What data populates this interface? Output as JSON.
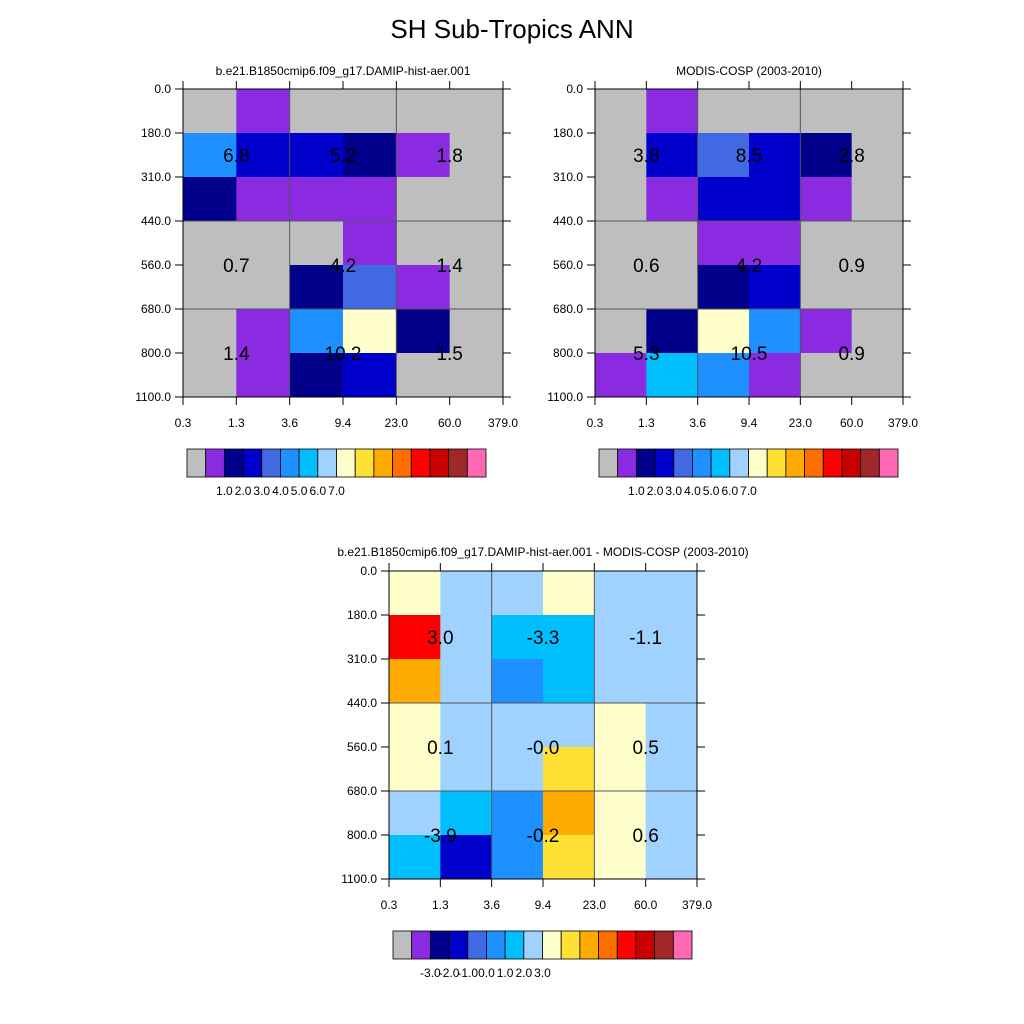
{
  "title": "SH Sub-Tropics ANN",
  "chart_data": [
    {
      "type": "heatmap",
      "title": "b.e21.B1850cmip6.f09_g17.DAMIP-hist-aer.001",
      "x_ticks": [
        "0.3",
        "1.3",
        "3.6",
        "9.4",
        "23.0",
        "60.0",
        "379.0"
      ],
      "y_ticks": [
        "0.0",
        "180.0",
        "310.0",
        "440.0",
        "560.0",
        "680.0",
        "800.0",
        "1100.0"
      ],
      "cells": [
        [
          "#bebebe",
          "#8a2be2",
          "#bebebe",
          "#bebebe",
          "#bebebe",
          "#bebebe"
        ],
        [
          "#1e90ff",
          "#0000cd",
          "#0000cd",
          "#00008b",
          "#8a2be2",
          "#bebebe"
        ],
        [
          "#00008b",
          "#8a2be2",
          "#8a2be2",
          "#8a2be2",
          "#bebebe",
          "#bebebe"
        ],
        [
          "#bebebe",
          "#bebebe",
          "#bebebe",
          "#8a2be2",
          "#bebebe",
          "#bebebe"
        ],
        [
          "#bebebe",
          "#bebebe",
          "#00008b",
          "#4169e1",
          "#8a2be2",
          "#bebebe"
        ],
        [
          "#bebebe",
          "#8a2be2",
          "#1e90ff",
          "#ffffcc",
          "#00008b",
          "#bebebe"
        ],
        [
          "#bebebe",
          "#8a2be2",
          "#00008b",
          "#0000cd",
          "#bebebe",
          "#bebebe"
        ]
      ],
      "annotations": [
        {
          "row": 1.5,
          "col": 1,
          "text": "6.8"
        },
        {
          "row": 1.5,
          "col": 3,
          "text": "5.2"
        },
        {
          "row": 1.5,
          "col": 5,
          "text": "1.8"
        },
        {
          "row": 4,
          "col": 1,
          "text": "0.7"
        },
        {
          "row": 4,
          "col": 3,
          "text": "4.2"
        },
        {
          "row": 4,
          "col": 5,
          "text": "1.4"
        },
        {
          "row": 6,
          "col": 1,
          "text": "1.4"
        },
        {
          "row": 6,
          "col": 3,
          "text": "10.2"
        },
        {
          "row": 6,
          "col": 5,
          "text": "1.5"
        }
      ],
      "colorbar": {
        "colors": [
          "#bebebe",
          "#8a2be2",
          "#00008b",
          "#0000cd",
          "#4169e1",
          "#1e90ff",
          "#00bfff",
          "#a0d2ff",
          "#ffffcc",
          "#ffe135",
          "#ffaa00",
          "#ff6e00",
          "#ff0000",
          "#c80000",
          "#a02828",
          "#ff69b4"
        ],
        "labels": [
          "1.0",
          "2.0",
          "3.0",
          "4.0",
          "5.0",
          "6.0",
          "7.0"
        ]
      }
    },
    {
      "type": "heatmap",
      "title": "MODIS-COSP (2003-2010)",
      "x_ticks": [
        "0.3",
        "1.3",
        "3.6",
        "9.4",
        "23.0",
        "60.0",
        "379.0"
      ],
      "y_ticks": [
        "0.0",
        "180.0",
        "310.0",
        "440.0",
        "560.0",
        "680.0",
        "800.0",
        "1100.0"
      ],
      "cells": [
        [
          "#bebebe",
          "#8a2be2",
          "#bebebe",
          "#bebebe",
          "#bebebe",
          "#bebebe"
        ],
        [
          "#bebebe",
          "#0000cd",
          "#4169e1",
          "#0000cd",
          "#00008b",
          "#bebebe"
        ],
        [
          "#bebebe",
          "#8a2be2",
          "#0000cd",
          "#0000cd",
          "#8a2be2",
          "#bebebe"
        ],
        [
          "#bebebe",
          "#bebebe",
          "#8a2be2",
          "#8a2be2",
          "#bebebe",
          "#bebebe"
        ],
        [
          "#bebebe",
          "#bebebe",
          "#00008b",
          "#0000cd",
          "#bebebe",
          "#bebebe"
        ],
        [
          "#bebebe",
          "#00008b",
          "#ffffcc",
          "#1e90ff",
          "#8a2be2",
          "#bebebe"
        ],
        [
          "#8a2be2",
          "#00bfff",
          "#1e90ff",
          "#8a2be2",
          "#bebebe",
          "#bebebe"
        ]
      ],
      "annotations": [
        {
          "row": 1.5,
          "col": 1,
          "text": "3.8"
        },
        {
          "row": 1.5,
          "col": 3,
          "text": "8.5"
        },
        {
          "row": 1.5,
          "col": 5,
          "text": "2.8"
        },
        {
          "row": 4,
          "col": 1,
          "text": "0.6"
        },
        {
          "row": 4,
          "col": 3,
          "text": "4.2"
        },
        {
          "row": 4,
          "col": 5,
          "text": "0.9"
        },
        {
          "row": 6,
          "col": 1,
          "text": "5.3"
        },
        {
          "row": 6,
          "col": 3,
          "text": "10.5"
        },
        {
          "row": 6,
          "col": 5,
          "text": "0.9"
        }
      ],
      "colorbar": {
        "colors": [
          "#bebebe",
          "#8a2be2",
          "#00008b",
          "#0000cd",
          "#4169e1",
          "#1e90ff",
          "#00bfff",
          "#a0d2ff",
          "#ffffcc",
          "#ffe135",
          "#ffaa00",
          "#ff6e00",
          "#ff0000",
          "#c80000",
          "#a02828",
          "#ff69b4"
        ],
        "labels": [
          "1.0",
          "2.0",
          "3.0",
          "4.0",
          "5.0",
          "6.0",
          "7.0"
        ]
      }
    },
    {
      "type": "heatmap",
      "title": "b.e21.B1850cmip6.f09_g17.DAMIP-hist-aer.001 - MODIS-COSP (2003-2010)",
      "x_ticks": [
        "0.3",
        "1.3",
        "3.6",
        "9.4",
        "23.0",
        "60.0",
        "379.0"
      ],
      "y_ticks": [
        "0.0",
        "180.0",
        "310.0",
        "440.0",
        "560.0",
        "680.0",
        "800.0",
        "1100.0"
      ],
      "cells": [
        [
          "#ffffcc",
          "#a0d2ff",
          "#a0d2ff",
          "#ffffcc",
          "#a0d2ff",
          "#a0d2ff"
        ],
        [
          "#ff0000",
          "#a0d2ff",
          "#00bfff",
          "#00bfff",
          "#a0d2ff",
          "#a0d2ff"
        ],
        [
          "#ffaa00",
          "#a0d2ff",
          "#1e90ff",
          "#00bfff",
          "#a0d2ff",
          "#a0d2ff"
        ],
        [
          "#ffffcc",
          "#a0d2ff",
          "#a0d2ff",
          "#a0d2ff",
          "#ffffcc",
          "#a0d2ff"
        ],
        [
          "#ffffcc",
          "#a0d2ff",
          "#a0d2ff",
          "#ffe135",
          "#ffffcc",
          "#a0d2ff"
        ],
        [
          "#a0d2ff",
          "#00bfff",
          "#1e90ff",
          "#ffaa00",
          "#ffffcc",
          "#a0d2ff"
        ],
        [
          "#00bfff",
          "#0000cd",
          "#1e90ff",
          "#ffe135",
          "#ffffcc",
          "#a0d2ff"
        ]
      ],
      "annotations": [
        {
          "row": 1.5,
          "col": 1,
          "text": "3.0"
        },
        {
          "row": 1.5,
          "col": 3,
          "text": "-3.3"
        },
        {
          "row": 1.5,
          "col": 5,
          "text": "-1.1"
        },
        {
          "row": 4,
          "col": 1,
          "text": "0.1"
        },
        {
          "row": 4,
          "col": 3,
          "text": "-0.0"
        },
        {
          "row": 4,
          "col": 5,
          "text": "0.5"
        },
        {
          "row": 6,
          "col": 1,
          "text": "-3.9"
        },
        {
          "row": 6,
          "col": 3,
          "text": "-0.2"
        },
        {
          "row": 6,
          "col": 5,
          "text": "0.6"
        }
      ],
      "colorbar": {
        "colors": [
          "#bebebe",
          "#8a2be2",
          "#00008b",
          "#0000cd",
          "#4169e1",
          "#1e90ff",
          "#00bfff",
          "#a0d2ff",
          "#ffffcc",
          "#ffe135",
          "#ffaa00",
          "#ff6e00",
          "#ff0000",
          "#c80000",
          "#a02828",
          "#ff69b4"
        ],
        "labels": [
          "-3.0",
          "-2.0",
          "-1.0",
          "0.0",
          "1.0",
          "2.0",
          "3.0"
        ]
      }
    }
  ]
}
